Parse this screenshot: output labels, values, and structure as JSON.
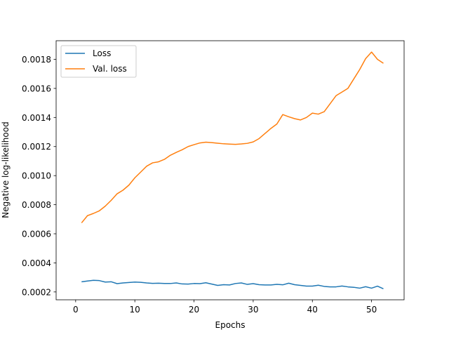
{
  "chart_data": {
    "type": "line",
    "title": "",
    "xlabel": "Epochs",
    "ylabel": "Negative log-likelihood",
    "xlim": [
      -3.3,
      55.5
    ],
    "ylim": [
      0.000146,
      0.001928
    ],
    "xticks": [
      0,
      10,
      20,
      30,
      40,
      50
    ],
    "yticks": [
      0.0002,
      0.0004,
      0.0006,
      0.0008,
      0.001,
      0.0012,
      0.0014,
      0.0016,
      0.0018
    ],
    "ytick_labels": [
      "0.0002",
      "0.0004",
      "0.0006",
      "0.0008",
      "0.0010",
      "0.0012",
      "0.0014",
      "0.0016",
      "0.0018"
    ],
    "xtick_labels": [
      "0",
      "10",
      "20",
      "30",
      "40",
      "50"
    ],
    "grid": false,
    "legend_position": "top-left",
    "x": [
      1,
      2,
      3,
      4,
      5,
      6,
      7,
      8,
      9,
      10,
      11,
      12,
      13,
      14,
      15,
      16,
      17,
      18,
      19,
      20,
      21,
      22,
      23,
      24,
      25,
      26,
      27,
      28,
      29,
      30,
      31,
      32,
      33,
      34,
      35,
      36,
      37,
      38,
      39,
      40,
      41,
      42,
      43,
      44,
      45,
      46,
      47,
      48,
      49,
      50,
      51,
      52
    ],
    "series": [
      {
        "name": "Loss",
        "color": "#1f77b4",
        "values": [
          0.00027,
          0.000275,
          0.00028,
          0.000278,
          0.000268,
          0.00027,
          0.000257,
          0.000262,
          0.000265,
          0.000268,
          0.000266,
          0.000262,
          0.000259,
          0.00026,
          0.000258,
          0.000258,
          0.000262,
          0.000255,
          0.000254,
          0.000258,
          0.000257,
          0.000263,
          0.000254,
          0.000245,
          0.00025,
          0.000248,
          0.000258,
          0.000262,
          0.000252,
          0.000257,
          0.00025,
          0.000248,
          0.000248,
          0.000252,
          0.000249,
          0.00026,
          0.00025,
          0.000245,
          0.00024,
          0.00024,
          0.000246,
          0.000238,
          0.000235,
          0.000235,
          0.000241,
          0.000235,
          0.000232,
          0.000226,
          0.000236,
          0.000226,
          0.00024,
          0.000222
        ]
      },
      {
        "name": "Val. loss",
        "color": "#ff7f0e",
        "values": [
          0.000675,
          0.000725,
          0.00074,
          0.000758,
          0.00079,
          0.00083,
          0.000875,
          0.0009,
          0.000935,
          0.000985,
          0.001025,
          0.001065,
          0.001088,
          0.001095,
          0.001112,
          0.00114,
          0.00116,
          0.001178,
          0.0012,
          0.001213,
          0.001225,
          0.00123,
          0.001227,
          0.001223,
          0.001219,
          0.001217,
          0.001215,
          0.001218,
          0.001222,
          0.001232,
          0.001255,
          0.00129,
          0.001325,
          0.001355,
          0.00142,
          0.001405,
          0.001392,
          0.001383,
          0.0014,
          0.00143,
          0.001423,
          0.00144,
          0.001495,
          0.00155,
          0.001575,
          0.0016,
          0.001665,
          0.00173,
          0.001805,
          0.00185,
          0.0018,
          0.001773
        ]
      }
    ]
  }
}
